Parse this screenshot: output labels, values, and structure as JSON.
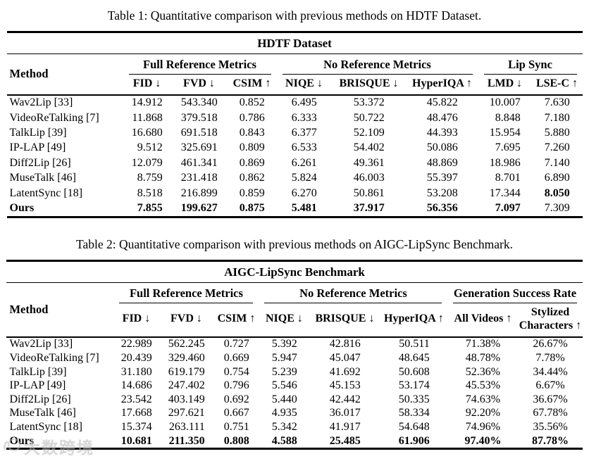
{
  "watermark": {
    "text": "大数跨境",
    "color": "#b9b9b9"
  },
  "tables": [
    {
      "caption": "Table 1: Quantitative comparison with previous methods on HDTF Dataset.",
      "title": "HDTF Dataset",
      "method_header": "Method",
      "groups": [
        {
          "label": "Full Reference Metrics",
          "span": 3
        },
        {
          "label": "No Reference Metrics",
          "span": 3
        },
        {
          "label": "Lip Sync",
          "span": 2
        }
      ],
      "columns": [
        "FID ↓",
        "FVD ↓",
        "CSIM ↑",
        "NIQE ↓",
        "BRISQUE ↓",
        "HyperIQA ↑",
        "LMD ↓",
        "LSE-C ↑"
      ],
      "rows": [
        {
          "method": "Wav2Lip [33]",
          "method_bold": false,
          "values": [
            "14.912",
            "543.340",
            "0.852",
            "6.495",
            "53.372",
            "45.822",
            "10.007",
            "7.630"
          ],
          "bold": []
        },
        {
          "method": "VideoReTalking [7]",
          "method_bold": false,
          "values": [
            "11.868",
            "379.518",
            "0.786",
            "6.333",
            "50.722",
            "48.476",
            "8.848",
            "7.180"
          ],
          "bold": []
        },
        {
          "method": "TalkLip [39]",
          "method_bold": false,
          "values": [
            "16.680",
            "691.518",
            "0.843",
            "6.377",
            "52.109",
            "44.393",
            "15.954",
            "5.880"
          ],
          "bold": []
        },
        {
          "method": "IP-LAP [49]",
          "method_bold": false,
          "values": [
            "9.512",
            "325.691",
            "0.809",
            "6.533",
            "54.402",
            "50.086",
            "7.695",
            "7.260"
          ],
          "bold": []
        },
        {
          "method": "Diff2Lip [26]",
          "method_bold": false,
          "values": [
            "12.079",
            "461.341",
            "0.869",
            "6.261",
            "49.361",
            "48.869",
            "18.986",
            "7.140"
          ],
          "bold": []
        },
        {
          "method": "MuseTalk [46]",
          "method_bold": false,
          "values": [
            "8.759",
            "231.418",
            "0.862",
            "5.824",
            "46.003",
            "55.397",
            "8.701",
            "6.890"
          ],
          "bold": []
        },
        {
          "method": "LatentSync [18]",
          "method_bold": false,
          "values": [
            "8.518",
            "216.899",
            "0.859",
            "6.270",
            "50.861",
            "53.208",
            "17.344",
            "8.050"
          ],
          "bold": [
            7
          ]
        },
        {
          "method": "Ours",
          "method_bold": true,
          "values": [
            "7.855",
            "199.627",
            "0.875",
            "5.481",
            "37.917",
            "56.356",
            "7.097",
            "7.309"
          ],
          "bold": [
            0,
            1,
            2,
            3,
            4,
            5,
            6
          ]
        }
      ]
    },
    {
      "caption": "Table 2: Quantitative comparison with previous methods on AIGC-LipSync Benchmark.",
      "title": "AIGC-LipSync Benchmark",
      "method_header": "Method",
      "groups": [
        {
          "label": "Full Reference Metrics",
          "span": 3
        },
        {
          "label": "No Reference Metrics",
          "span": 3
        },
        {
          "label": "Generation Success Rate",
          "span": 2
        }
      ],
      "columns": [
        "FID ↓",
        "FVD ↓",
        "CSIM ↑",
        "NIQE ↓",
        "BRISQUE ↓",
        "HyperIQA ↑",
        "All Videos ↑",
        "Stylized Characters ↑"
      ],
      "rows": [
        {
          "method": "Wav2Lip [33]",
          "method_bold": false,
          "values": [
            "22.989",
            "562.245",
            "0.727",
            "5.392",
            "42.816",
            "50.511",
            "71.38%",
            "26.67%"
          ],
          "bold": []
        },
        {
          "method": "VideoReTalking [7]",
          "method_bold": false,
          "values": [
            "20.439",
            "329.460",
            "0.669",
            "5.947",
            "45.047",
            "48.645",
            "48.78%",
            "7.78%"
          ],
          "bold": []
        },
        {
          "method": "TalkLip [39]",
          "method_bold": false,
          "values": [
            "31.180",
            "619.179",
            "0.754",
            "5.239",
            "41.692",
            "50.608",
            "52.36%",
            "34.44%"
          ],
          "bold": []
        },
        {
          "method": "IP-LAP [49]",
          "method_bold": false,
          "values": [
            "14.686",
            "247.402",
            "0.796",
            "5.546",
            "45.153",
            "53.174",
            "45.53%",
            "6.67%"
          ],
          "bold": []
        },
        {
          "method": "Diff2Lip [26]",
          "method_bold": false,
          "values": [
            "23.542",
            "403.149",
            "0.692",
            "5.440",
            "42.442",
            "50.335",
            "74.63%",
            "36.67%"
          ],
          "bold": []
        },
        {
          "method": "MuseTalk [46]",
          "method_bold": false,
          "values": [
            "17.668",
            "297.621",
            "0.667",
            "4.935",
            "36.017",
            "58.334",
            "92.20%",
            "67.78%"
          ],
          "bold": []
        },
        {
          "method": "LatentSync [18]",
          "method_bold": false,
          "values": [
            "15.374",
            "263.111",
            "0.751",
            "5.342",
            "41.917",
            "54.648",
            "74.96%",
            "35.56%"
          ],
          "bold": []
        },
        {
          "method": "Ours",
          "method_bold": true,
          "values": [
            "10.681",
            "211.350",
            "0.808",
            "4.588",
            "25.485",
            "61.906",
            "97.40%",
            "87.78%"
          ],
          "bold": [
            0,
            1,
            2,
            3,
            4,
            5,
            6,
            7
          ]
        }
      ]
    }
  ]
}
